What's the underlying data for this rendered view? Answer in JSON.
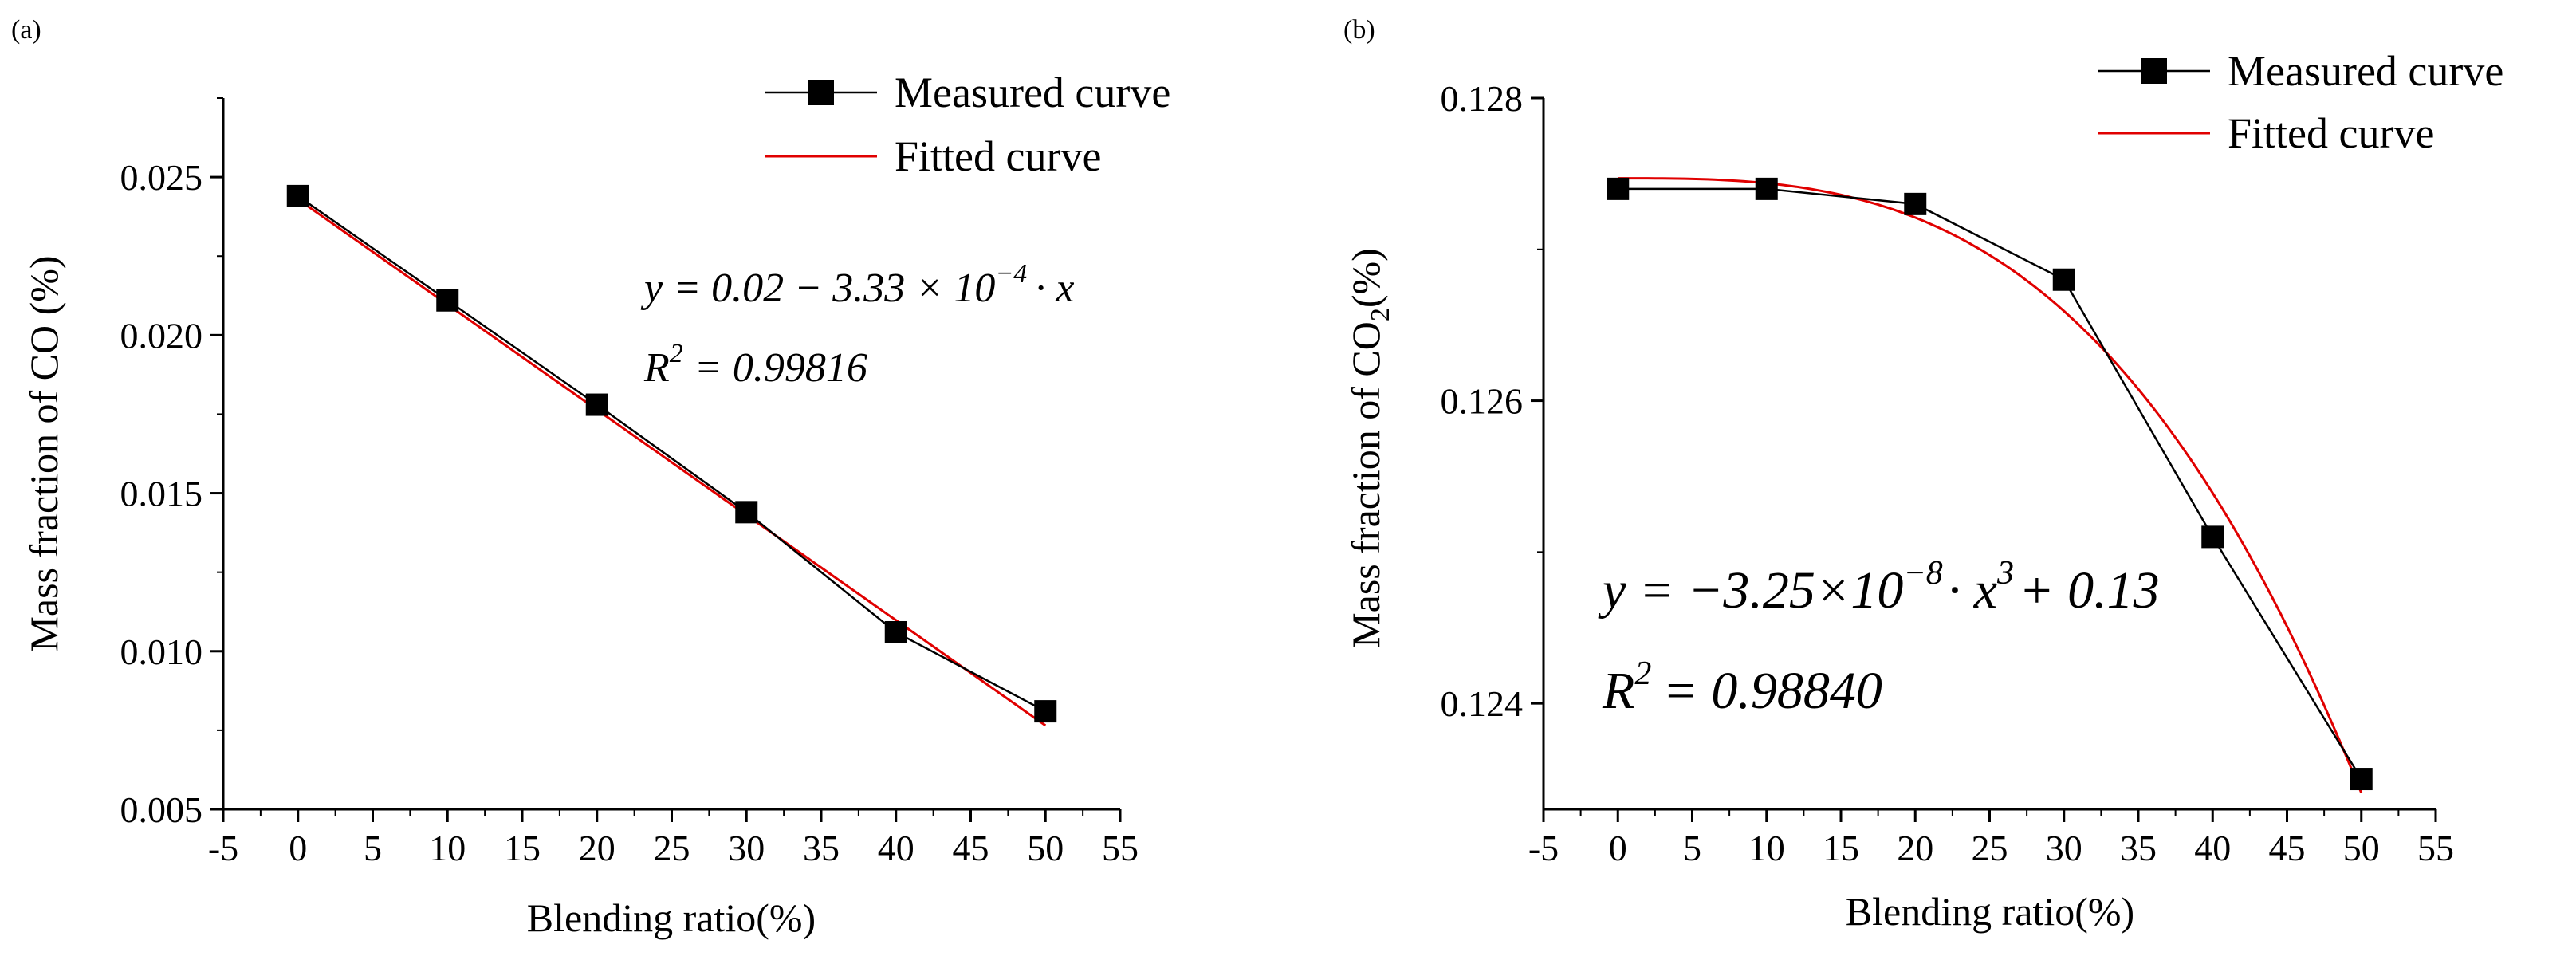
{
  "chart_data": [
    {
      "type": "line",
      "panel_label": "(a)",
      "xlabel": "Blending ratio(%)",
      "ylabel": "Mass fraction of CO (%)",
      "xlim": [
        -5,
        55
      ],
      "ylim": [
        0.005,
        0.0275
      ],
      "xticks": [
        -5,
        0,
        5,
        10,
        15,
        20,
        25,
        30,
        35,
        40,
        45,
        50,
        55
      ],
      "xtick_labels": [
        "-5",
        "0",
        "5",
        "10",
        "15",
        "20",
        "25",
        "30",
        "35",
        "40",
        "45",
        "50",
        "55"
      ],
      "yticks": [
        0.005,
        0.01,
        0.015,
        0.02,
        0.025
      ],
      "ytick_labels": [
        "0.005",
        "0.010",
        "0.015",
        "0.020",
        "0.025"
      ],
      "legend": {
        "position": "top-right",
        "entries": [
          "Measured curve",
          "Fitted curve"
        ]
      },
      "series": [
        {
          "name": "Measured curve",
          "color": "#000000",
          "marker": "square",
          "x": [
            0,
            10,
            20,
            30,
            40,
            50
          ],
          "values": [
            0.0244,
            0.0211,
            0.0178,
            0.0144,
            0.0106,
            0.0081
          ]
        },
        {
          "name": "Fitted curve",
          "color": "#e00000",
          "model": "linear",
          "intercept": 0.0243,
          "slope": -0.000333
        }
      ],
      "equation": {
        "line1_prefix": "y = 0.02 − 3.33 × 10",
        "line1_exp": "−4",
        "line1_suffix": "· x",
        "line2_prefix": "R",
        "line2_exp": "2",
        "line2_suffix": "= 0.99816"
      }
    },
    {
      "type": "line",
      "panel_label": "(b)",
      "xlabel": "Blending ratio(%)",
      "ylabel_prefix": "Mass fraction of CO",
      "ylabel_sub": "2",
      "ylabel_suffix": "(%)",
      "xlim": [
        -5,
        55
      ],
      "ylim": [
        0.1233,
        0.128
      ],
      "xticks": [
        -5,
        0,
        5,
        10,
        15,
        20,
        25,
        30,
        35,
        40,
        45,
        50,
        55
      ],
      "xtick_labels": [
        "-5",
        "0",
        "5",
        "10",
        "15",
        "20",
        "25",
        "30",
        "35",
        "40",
        "45",
        "50",
        "55"
      ],
      "yticks": [
        0.124,
        0.126,
        0.128
      ],
      "ytick_labels": [
        "0.124",
        "0.126",
        "0.128"
      ],
      "legend": {
        "position": "top-right",
        "entries": [
          "Measured curve",
          "Fitted curve"
        ]
      },
      "series": [
        {
          "name": "Measured curve",
          "color": "#000000",
          "marker": "square",
          "x": [
            0,
            10,
            20,
            30,
            40,
            50
          ],
          "values": [
            0.1274,
            0.1274,
            0.1273,
            0.1268,
            0.1251,
            0.1235
          ]
        },
        {
          "name": "Fitted curve",
          "color": "#e00000",
          "model": "cubic",
          "intercept": 0.12747,
          "coef3": -3.25e-08
        }
      ],
      "equation": {
        "line1_prefix": "y = −3.25×10",
        "line1_exp": "−8",
        "line1_mid": "· x",
        "line1_exp2": "3",
        "line1_suffix": "+ 0.13",
        "line2_prefix": "R",
        "line2_exp": "2",
        "line2_suffix": "= 0.98840"
      }
    }
  ]
}
